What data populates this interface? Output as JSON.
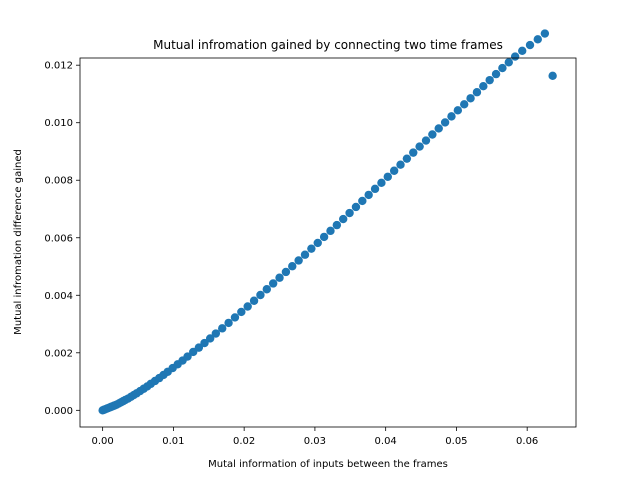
{
  "chart_data": {
    "type": "scatter",
    "title": "Mutual infromation gained by connecting two time frames",
    "xlabel": "Mutal information of inputs between the frames",
    "ylabel": "Mutual infromation difference gained",
    "xlim": [
      -0.0032,
      0.0669
    ],
    "ylim": [
      -0.00058,
      0.01225
    ],
    "xticks": [
      0.0,
      0.01,
      0.02,
      0.03,
      0.04,
      0.05,
      0.06
    ],
    "xtick_labels": [
      "0.00",
      "0.01",
      "0.02",
      "0.03",
      "0.04",
      "0.05",
      "0.06"
    ],
    "yticks": [
      0.0,
      0.002,
      0.004,
      0.006,
      0.008,
      0.01,
      0.012
    ],
    "ytick_labels": [
      "0.000",
      "0.002",
      "0.004",
      "0.006",
      "0.008",
      "0.010",
      "0.012"
    ],
    "marker_color": "#1f77b4",
    "grid": false,
    "series": [
      {
        "x": [
          0.0,
          0.0002,
          0.0004,
          0.0006,
          0.0008,
          0.001,
          0.0012,
          0.0014,
          0.0016,
          0.0018,
          0.002,
          0.0023,
          0.0026,
          0.0029,
          0.0032,
          0.0036,
          0.004,
          0.0044,
          0.0048,
          0.0053,
          0.0058,
          0.0063,
          0.0068,
          0.0074,
          0.008,
          0.0086,
          0.0092,
          0.0099,
          0.0106,
          0.0113,
          0.012,
          0.0128,
          0.0136,
          0.0144,
          0.0152,
          0.016,
          0.0169,
          0.0178,
          0.0187,
          0.0196,
          0.0205,
          0.0214,
          0.0223,
          0.0232,
          0.0241,
          0.025,
          0.0259,
          0.0268,
          0.0277,
          0.0286,
          0.0295,
          0.0304,
          0.0313,
          0.0322,
          0.0331,
          0.034,
          0.0349,
          0.0358,
          0.0367,
          0.0376,
          0.0385,
          0.0394,
          0.0403,
          0.0412,
          0.0421,
          0.043,
          0.0439,
          0.0448,
          0.0457,
          0.0466,
          0.0475,
          0.0484,
          0.0493,
          0.0502,
          0.0511,
          0.052,
          0.0529,
          0.0538,
          0.0547,
          0.0556,
          0.0565,
          0.0574,
          0.0583,
          0.0593,
          0.0604,
          0.0615,
          0.0625,
          0.0636
        ],
        "y": [
          0.0,
          2e-05,
          4e-05,
          6e-05,
          8e-05,
          0.0001,
          0.00012,
          0.00014,
          0.00016,
          0.00018,
          0.0002,
          0.00024,
          0.00028,
          0.00032,
          0.00036,
          0.00041,
          0.00047,
          0.00053,
          0.00059,
          0.00067,
          0.00075,
          0.00083,
          0.00092,
          0.00102,
          0.00112,
          0.00123,
          0.00134,
          0.00147,
          0.0016,
          0.00173,
          0.00187,
          0.00203,
          0.00218,
          0.00234,
          0.0025,
          0.00267,
          0.00285,
          0.00304,
          0.00323,
          0.00342,
          0.00361,
          0.00381,
          0.00401,
          0.00421,
          0.00441,
          0.00461,
          0.00481,
          0.00501,
          0.00521,
          0.00541,
          0.00562,
          0.00582,
          0.00603,
          0.00624,
          0.00644,
          0.00665,
          0.00686,
          0.00707,
          0.00728,
          0.00749,
          0.0077,
          0.00791,
          0.00812,
          0.00833,
          0.00854,
          0.00875,
          0.00896,
          0.00917,
          0.00938,
          0.00959,
          0.0098,
          0.01001,
          0.01022,
          0.01043,
          0.01064,
          0.01085,
          0.01106,
          0.01127,
          0.01148,
          0.01169,
          0.0119,
          0.0121,
          0.0123,
          0.0125,
          0.0127,
          0.0129,
          0.0131,
          0.01163
        ]
      }
    ]
  }
}
